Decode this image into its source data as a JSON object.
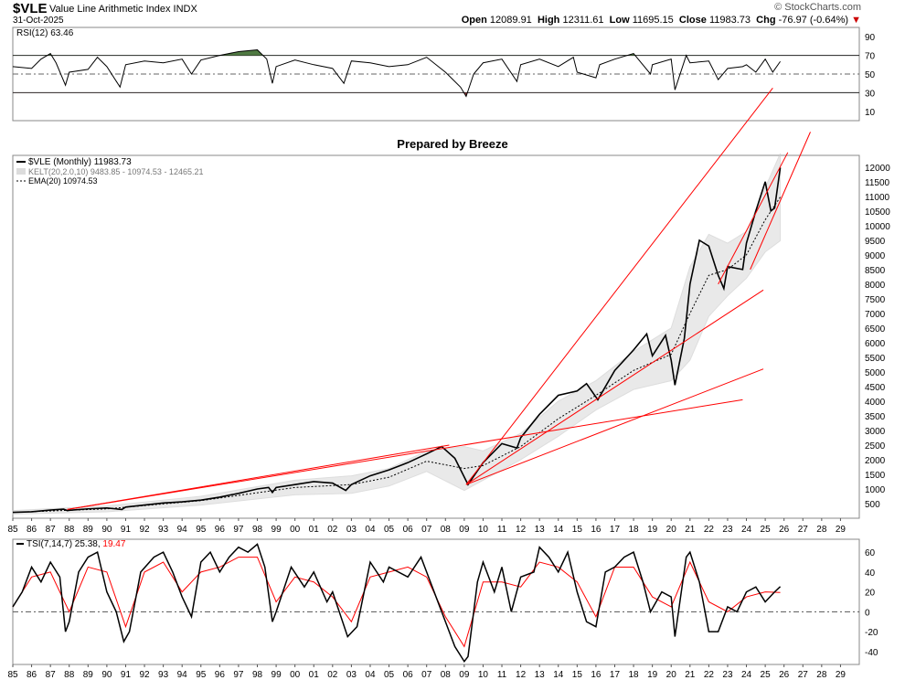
{
  "header": {
    "symbol": "$VLE",
    "name": "Value Line Arithmetic Index  INDX",
    "date": "31-Oct-2025",
    "open_label": "Open",
    "open": "12089.91",
    "high_label": "High",
    "high": "12311.61",
    "low_label": "Low",
    "low": "11695.15",
    "close_label": "Close",
    "close": "11983.73",
    "chg_label": "Chg",
    "chg": "-76.97 (-0.64%)",
    "brand": "© StockCharts.com"
  },
  "colors": {
    "price": "#000000",
    "trend": "#ff0000",
    "band": "#dcdcdc",
    "rsi_fill": "#4f7942",
    "tsi_signal": "#ff0000"
  },
  "chart_data": [
    {
      "type": "line",
      "title": "RSI(12) 63.46",
      "legend": "RSI(12) 63.46",
      "ylim": [
        0,
        100
      ],
      "yticks": [
        90,
        70,
        50,
        30,
        10
      ],
      "reference_lines": [
        70,
        50,
        30
      ],
      "series": [
        {
          "name": "RSI(12)",
          "x": [
            1985,
            1986,
            1986.5,
            1987,
            1987.3,
            1987.8,
            1988,
            1989,
            1989.5,
            1990,
            1990.7,
            1991,
            1992,
            1993,
            1994,
            1994.5,
            1995,
            1996,
            1997,
            1998,
            1998.5,
            1998.8,
            1999,
            2000,
            2001,
            2002,
            2002.6,
            2003,
            2004,
            2005,
            2006,
            2007,
            2008,
            2008.8,
            2009.1,
            2009.5,
            2010,
            2011,
            2011.8,
            2012,
            2013,
            2014,
            2014.8,
            2015,
            2016,
            2016.2,
            2017,
            2018,
            2018.9,
            2019,
            2020,
            2020.2,
            2020.8,
            2021,
            2022,
            2022.5,
            2023,
            2023.8,
            2024,
            2024.5,
            2025,
            2025.4,
            2025.8
          ],
          "values": [
            58,
            56,
            66,
            72,
            62,
            38,
            52,
            55,
            68,
            58,
            36,
            60,
            64,
            62,
            66,
            50,
            65,
            70,
            74,
            76,
            66,
            40,
            58,
            65,
            60,
            56,
            40,
            64,
            62,
            58,
            60,
            68,
            52,
            36,
            26,
            50,
            62,
            66,
            42,
            60,
            66,
            58,
            68,
            52,
            46,
            60,
            66,
            72,
            50,
            60,
            66,
            33,
            70,
            62,
            64,
            44,
            56,
            58,
            60,
            52,
            66,
            52,
            63.46
          ]
        }
      ]
    },
    {
      "type": "line",
      "title": "Prepared by Breeze",
      "ylim": [
        0,
        12400
      ],
      "yticks": [
        500,
        1000,
        1500,
        2000,
        2500,
        3000,
        3500,
        4000,
        4500,
        5000,
        5500,
        6000,
        6500,
        7000,
        7500,
        8000,
        8500,
        9000,
        9500,
        10000,
        10500,
        11000,
        11500,
        12000
      ],
      "xticks": [
        "85",
        "86",
        "87",
        "88",
        "89",
        "90",
        "91",
        "92",
        "93",
        "94",
        "95",
        "96",
        "97",
        "98",
        "99",
        "00",
        "01",
        "02",
        "03",
        "04",
        "05",
        "06",
        "07",
        "08",
        "09",
        "10",
        "11",
        "12",
        "13",
        "14",
        "15",
        "16",
        "17",
        "18",
        "19",
        "20",
        "21",
        "22",
        "23",
        "24",
        "25",
        "26",
        "27",
        "28",
        "29"
      ],
      "legend": [
        "$VLE (Monthly) 11983.73",
        "KELT(20,2.0,10) 9483.85 - 10974.53 - 12465.21",
        "EMA(20) 10974.53"
      ],
      "series": [
        {
          "name": "$VLE (Monthly)",
          "x": [
            1985,
            1986,
            1987,
            1987.7,
            1987.9,
            1988,
            1989,
            1990,
            1990.8,
            1991,
            1992,
            1993,
            1994,
            1995,
            1996,
            1997,
            1998,
            1998.6,
            1998.8,
            1999,
            2000,
            2001,
            2002,
            2002.7,
            2003,
            2004,
            2005,
            2006,
            2007,
            2007.8,
            2008.5,
            2009.2,
            2010,
            2011,
            2011.8,
            2012,
            2013,
            2014,
            2015,
            2015.5,
            2016.1,
            2017,
            2018,
            2018.7,
            2019,
            2019.7,
            2020,
            2020.2,
            2020.7,
            2021,
            2021.5,
            2022,
            2022.5,
            2022.8,
            2023,
            2023.8,
            2024,
            2024.5,
            2025,
            2025.3,
            2025.5,
            2025.8
          ],
          "values": [
            200,
            220,
            280,
            310,
            260,
            270,
            320,
            350,
            300,
            380,
            450,
            520,
            560,
            620,
            720,
            850,
            1000,
            1050,
            880,
            1050,
            1150,
            1250,
            1200,
            950,
            1150,
            1450,
            1650,
            1900,
            2200,
            2450,
            2050,
            1150,
            1900,
            2550,
            2400,
            2750,
            3550,
            4200,
            4350,
            4600,
            4050,
            5050,
            5750,
            6300,
            5550,
            6250,
            5400,
            4550,
            6150,
            8000,
            9500,
            9300,
            8300,
            7850,
            8600,
            8500,
            9400,
            10500,
            11500,
            10500,
            10600,
            11983.73
          ]
        },
        {
          "name": "EMA(20)",
          "x": [
            1985,
            1990,
            1995,
            2000,
            2003,
            2005,
            2007,
            2009,
            2010,
            2012,
            2014,
            2016,
            2018,
            2020,
            2021,
            2022,
            2023,
            2024,
            2025,
            2025.8
          ],
          "values": [
            200,
            320,
            600,
            1050,
            1150,
            1400,
            1950,
            1700,
            1800,
            2450,
            3400,
            4200,
            5050,
            5600,
            7000,
            8300,
            8500,
            9000,
            10200,
            10974.53
          ]
        }
      ],
      "bands": {
        "name": "KELT(20,2.0,10)",
        "x": [
          1985,
          1990,
          1995,
          2000,
          2003,
          2005,
          2007,
          2009,
          2010,
          2012,
          2014,
          2016,
          2018,
          2020,
          2021,
          2022,
          2023,
          2024,
          2025,
          2025.8
        ],
        "upper": [
          260,
          420,
          750,
          1300,
          1450,
          1700,
          2300,
          2450,
          2300,
          2900,
          4000,
          4700,
          5700,
          6500,
          8600,
          9700,
          9400,
          9800,
          11300,
          12465.21
        ],
        "lower": [
          140,
          220,
          450,
          800,
          850,
          1100,
          1600,
          950,
          1300,
          2000,
          2800,
          3700,
          4400,
          4700,
          5400,
          6900,
          7600,
          8200,
          9100,
          9483.85
        ]
      },
      "trendlines": [
        {
          "x1": 1987.9,
          "y1": 300,
          "x2": 2008.2,
          "y2": 2500
        },
        {
          "x1": 1987.9,
          "y1": 300,
          "x2": 2023.8,
          "y2": 4050
        },
        {
          "x1": 2009.1,
          "y1": 1150,
          "x2": 2024.9,
          "y2": 5100
        },
        {
          "x1": 2009.1,
          "y1": 1150,
          "x2": 2024.9,
          "y2": 7800
        },
        {
          "x1": 2009.1,
          "y1": 1150,
          "x2": 2025.4,
          "y2": 14700
        },
        {
          "x1": 2022.5,
          "y1": 8000,
          "x2": 2026.2,
          "y2": 12500
        },
        {
          "x1": 2024.2,
          "y1": 8500,
          "x2": 2027.4,
          "y2": 13200
        }
      ]
    },
    {
      "type": "line",
      "title": "TSI(7,14,7) 25.38, 19.47",
      "legend": [
        "TSI(7,14,7) 25.38",
        "19.47"
      ],
      "ylim": [
        -53,
        73
      ],
      "yticks": [
        60,
        40,
        20,
        0,
        -20,
        -40
      ],
      "reference_lines": [
        0
      ],
      "series": [
        {
          "name": "TSI",
          "x": [
            1985,
            1985.5,
            1986,
            1986.5,
            1987,
            1987.5,
            1987.8,
            1988,
            1988.5,
            1989,
            1989.5,
            1990,
            1990.5,
            1990.9,
            1991.2,
            1991.8,
            1992.5,
            1993,
            1993.5,
            1994,
            1994.5,
            1995,
            1995.5,
            1996,
            1996.5,
            1997,
            1997.5,
            1998,
            1998.4,
            1998.8,
            1999,
            1999.8,
            2000.5,
            2001,
            2001.7,
            2002,
            2002.8,
            2003.3,
            2004,
            2004.7,
            2005,
            2006,
            2006.7,
            2007,
            2007.5,
            2008,
            2008.5,
            2009,
            2009.2,
            2009.7,
            2010,
            2010.6,
            2011,
            2011.5,
            2012,
            2012.7,
            2013,
            2013.5,
            2014,
            2014.5,
            2015,
            2015.5,
            2016,
            2016.5,
            2017,
            2017.5,
            2018,
            2018.5,
            2018.9,
            2019.5,
            2020,
            2020.2,
            2020.8,
            2021,
            2021.5,
            2022,
            2022.5,
            2023,
            2023.5,
            2024,
            2024.5,
            2025,
            2025.5,
            2025.8
          ],
          "values": [
            5,
            20,
            45,
            30,
            50,
            35,
            -20,
            -10,
            40,
            55,
            60,
            20,
            0,
            -30,
            -20,
            40,
            55,
            60,
            40,
            15,
            -5,
            50,
            60,
            40,
            55,
            65,
            60,
            68,
            45,
            -10,
            0,
            45,
            25,
            40,
            10,
            20,
            -25,
            -15,
            50,
            30,
            45,
            35,
            55,
            40,
            15,
            -10,
            -35,
            -50,
            -45,
            30,
            50,
            20,
            45,
            0,
            35,
            40,
            65,
            55,
            40,
            60,
            20,
            -10,
            -15,
            40,
            45,
            55,
            60,
            30,
            0,
            20,
            15,
            -25,
            55,
            60,
            30,
            -20,
            -20,
            5,
            0,
            20,
            25,
            10,
            20,
            25.38
          ]
        },
        {
          "name": "Signal",
          "x": [
            1985,
            1986,
            1987,
            1988,
            1989,
            1990,
            1991,
            1992,
            1993,
            1994,
            1995,
            1996,
            1997,
            1998,
            1999,
            2000,
            2001,
            2002,
            2003,
            2004,
            2005,
            2006,
            2007,
            2008,
            2009,
            2010,
            2011,
            2012,
            2013,
            2014,
            2015,
            2016,
            2017,
            2018,
            2019,
            2020,
            2021,
            2022,
            2023,
            2024,
            2025,
            2025.8
          ],
          "values": [
            5,
            35,
            40,
            0,
            45,
            40,
            -15,
            40,
            50,
            20,
            40,
            45,
            55,
            55,
            10,
            35,
            30,
            15,
            -10,
            35,
            40,
            45,
            35,
            -5,
            -35,
            30,
            30,
            25,
            50,
            45,
            30,
            -5,
            45,
            45,
            15,
            5,
            50,
            10,
            0,
            15,
            20,
            19.47
          ]
        }
      ]
    }
  ],
  "annotation": "Prepared by Breeze"
}
